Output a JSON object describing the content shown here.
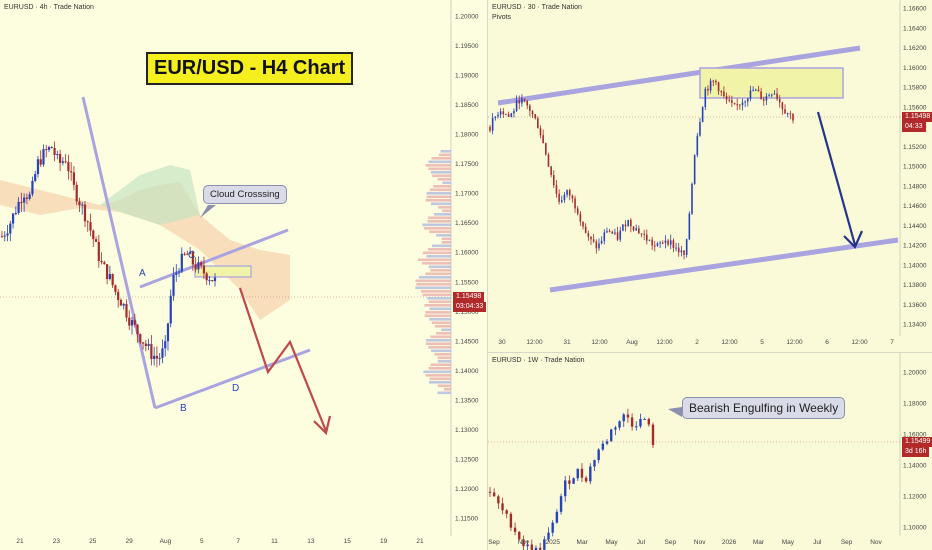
{
  "panel_h4": {
    "title": "EURUSD · 4h · Trade Nation",
    "banner": "EUR/USD - H4 Chart",
    "callout": "Cloud Crosssing",
    "points": [
      "A",
      "B",
      "C",
      "D"
    ],
    "price_badge": "1.15498",
    "timer_badge": "03:04:33",
    "colors": {
      "up": "#2743b8",
      "down": "#a52b2b",
      "channel": "#a9a3e0",
      "cloud_bear": "#f7c9a3",
      "cloud_bull": "#c6e4c0",
      "arrow": "#c0484a"
    }
  },
  "panel_30m": {
    "title": "EURUSD · 30 · Trade Nation",
    "subtitle": "Pivots",
    "price_badge": "1.15498",
    "timer_badge": "04:33",
    "colors": {
      "arrow": "#24348c",
      "zone": "#f1f3a9"
    }
  },
  "panel_1w": {
    "title": "EURUSD · 1W · Trade Nation",
    "callout": "Bearish Engulfing in Weekly",
    "price_badge": "1.15499",
    "timer_badge": "3d 16h"
  },
  "chart_data": [
    {
      "type": "candlestick",
      "title": "EURUSD · 4h · Trade Nation",
      "timeframe": "4h",
      "x_tick_labels": [
        "21",
        "23",
        "25",
        "29",
        "Aug",
        "5",
        "7",
        "11",
        "13",
        "15",
        "19",
        "21"
      ],
      "y_tick_labels": [
        "1.20000",
        "1.19500",
        "1.19000",
        "1.18500",
        "1.18000",
        "1.17500",
        "1.17000",
        "1.16500",
        "1.16000",
        "1.15500",
        "1.15000",
        "1.14500",
        "1.14000",
        "1.13500",
        "1.13000",
        "1.12500",
        "1.12000",
        "1.11500"
      ],
      "ylim": [
        1.1125,
        1.2025
      ],
      "last_price": 1.15498,
      "annotations": [
        {
          "label": "A",
          "price": 1.1592
        },
        {
          "label": "B",
          "price": 1.1392
        },
        {
          "label": "C",
          "price": 1.1618
        },
        {
          "label": "D",
          "price": 1.1415
        }
      ],
      "close_path": [
        1.163,
        1.165,
        1.168,
        1.171,
        1.17,
        1.176,
        1.178,
        1.179,
        1.176,
        1.177,
        1.172,
        1.169,
        1.166,
        1.162,
        1.158,
        1.156,
        1.153,
        1.151,
        1.148,
        1.146,
        1.144,
        1.142,
        1.141,
        1.143,
        1.155,
        1.158,
        1.16,
        1.158,
        1.157,
        1.156,
        1.155
      ]
    },
    {
      "type": "candlestick",
      "title": "EURUSD · 30 · Trade Nation",
      "timeframe": "30m",
      "x_tick_labels": [
        "30",
        "12:00",
        "31",
        "12:00",
        "Aug",
        "12:00",
        "2",
        "12:00",
        "5",
        "12:00",
        "6",
        "12:00",
        "7"
      ],
      "y_tick_labels": [
        "1.16600",
        "1.16400",
        "1.16200",
        "1.16000",
        "1.15800",
        "1.15600",
        "1.15400",
        "1.15200",
        "1.15000",
        "1.14800",
        "1.14600",
        "1.14400",
        "1.14200",
        "1.14000",
        "1.13800",
        "1.13600",
        "1.13400"
      ],
      "ylim": [
        1.1328,
        1.1668
      ],
      "last_price": 1.15498,
      "close_path": [
        1.154,
        1.156,
        1.155,
        1.157,
        1.156,
        1.154,
        1.15,
        1.146,
        1.147,
        1.145,
        1.142,
        1.141,
        1.143,
        1.142,
        1.144,
        1.143,
        1.142,
        1.141,
        1.142,
        1.141,
        1.14,
        1.152,
        1.158,
        1.159,
        1.157,
        1.156,
        1.157,
        1.158,
        1.157,
        1.158,
        1.156,
        1.155
      ]
    },
    {
      "type": "candlestick",
      "title": "EURUSD · 1W · Trade Nation",
      "timeframe": "1W",
      "x_tick_labels": [
        "Sep",
        "Nov",
        "2025",
        "Mar",
        "May",
        "Jul",
        "Sep",
        "Nov",
        "2026",
        "Mar",
        "May",
        "Jul",
        "Sep",
        "Nov"
      ],
      "y_tick_labels": [
        "1.20000",
        "1.18000",
        "1.16000",
        "1.14000",
        "1.12000",
        "1.10000"
      ],
      "ylim": [
        1.095,
        1.205
      ],
      "last_price": 1.15499,
      "close_path": [
        1.12,
        1.112,
        1.105,
        1.098,
        1.09,
        1.082,
        1.08,
        1.078,
        1.085,
        1.092,
        1.11,
        1.125,
        1.13,
        1.135,
        1.128,
        1.14,
        1.15,
        1.155,
        1.165,
        1.17,
        1.175,
        1.168,
        1.17,
        1.172,
        1.155
      ]
    }
  ]
}
